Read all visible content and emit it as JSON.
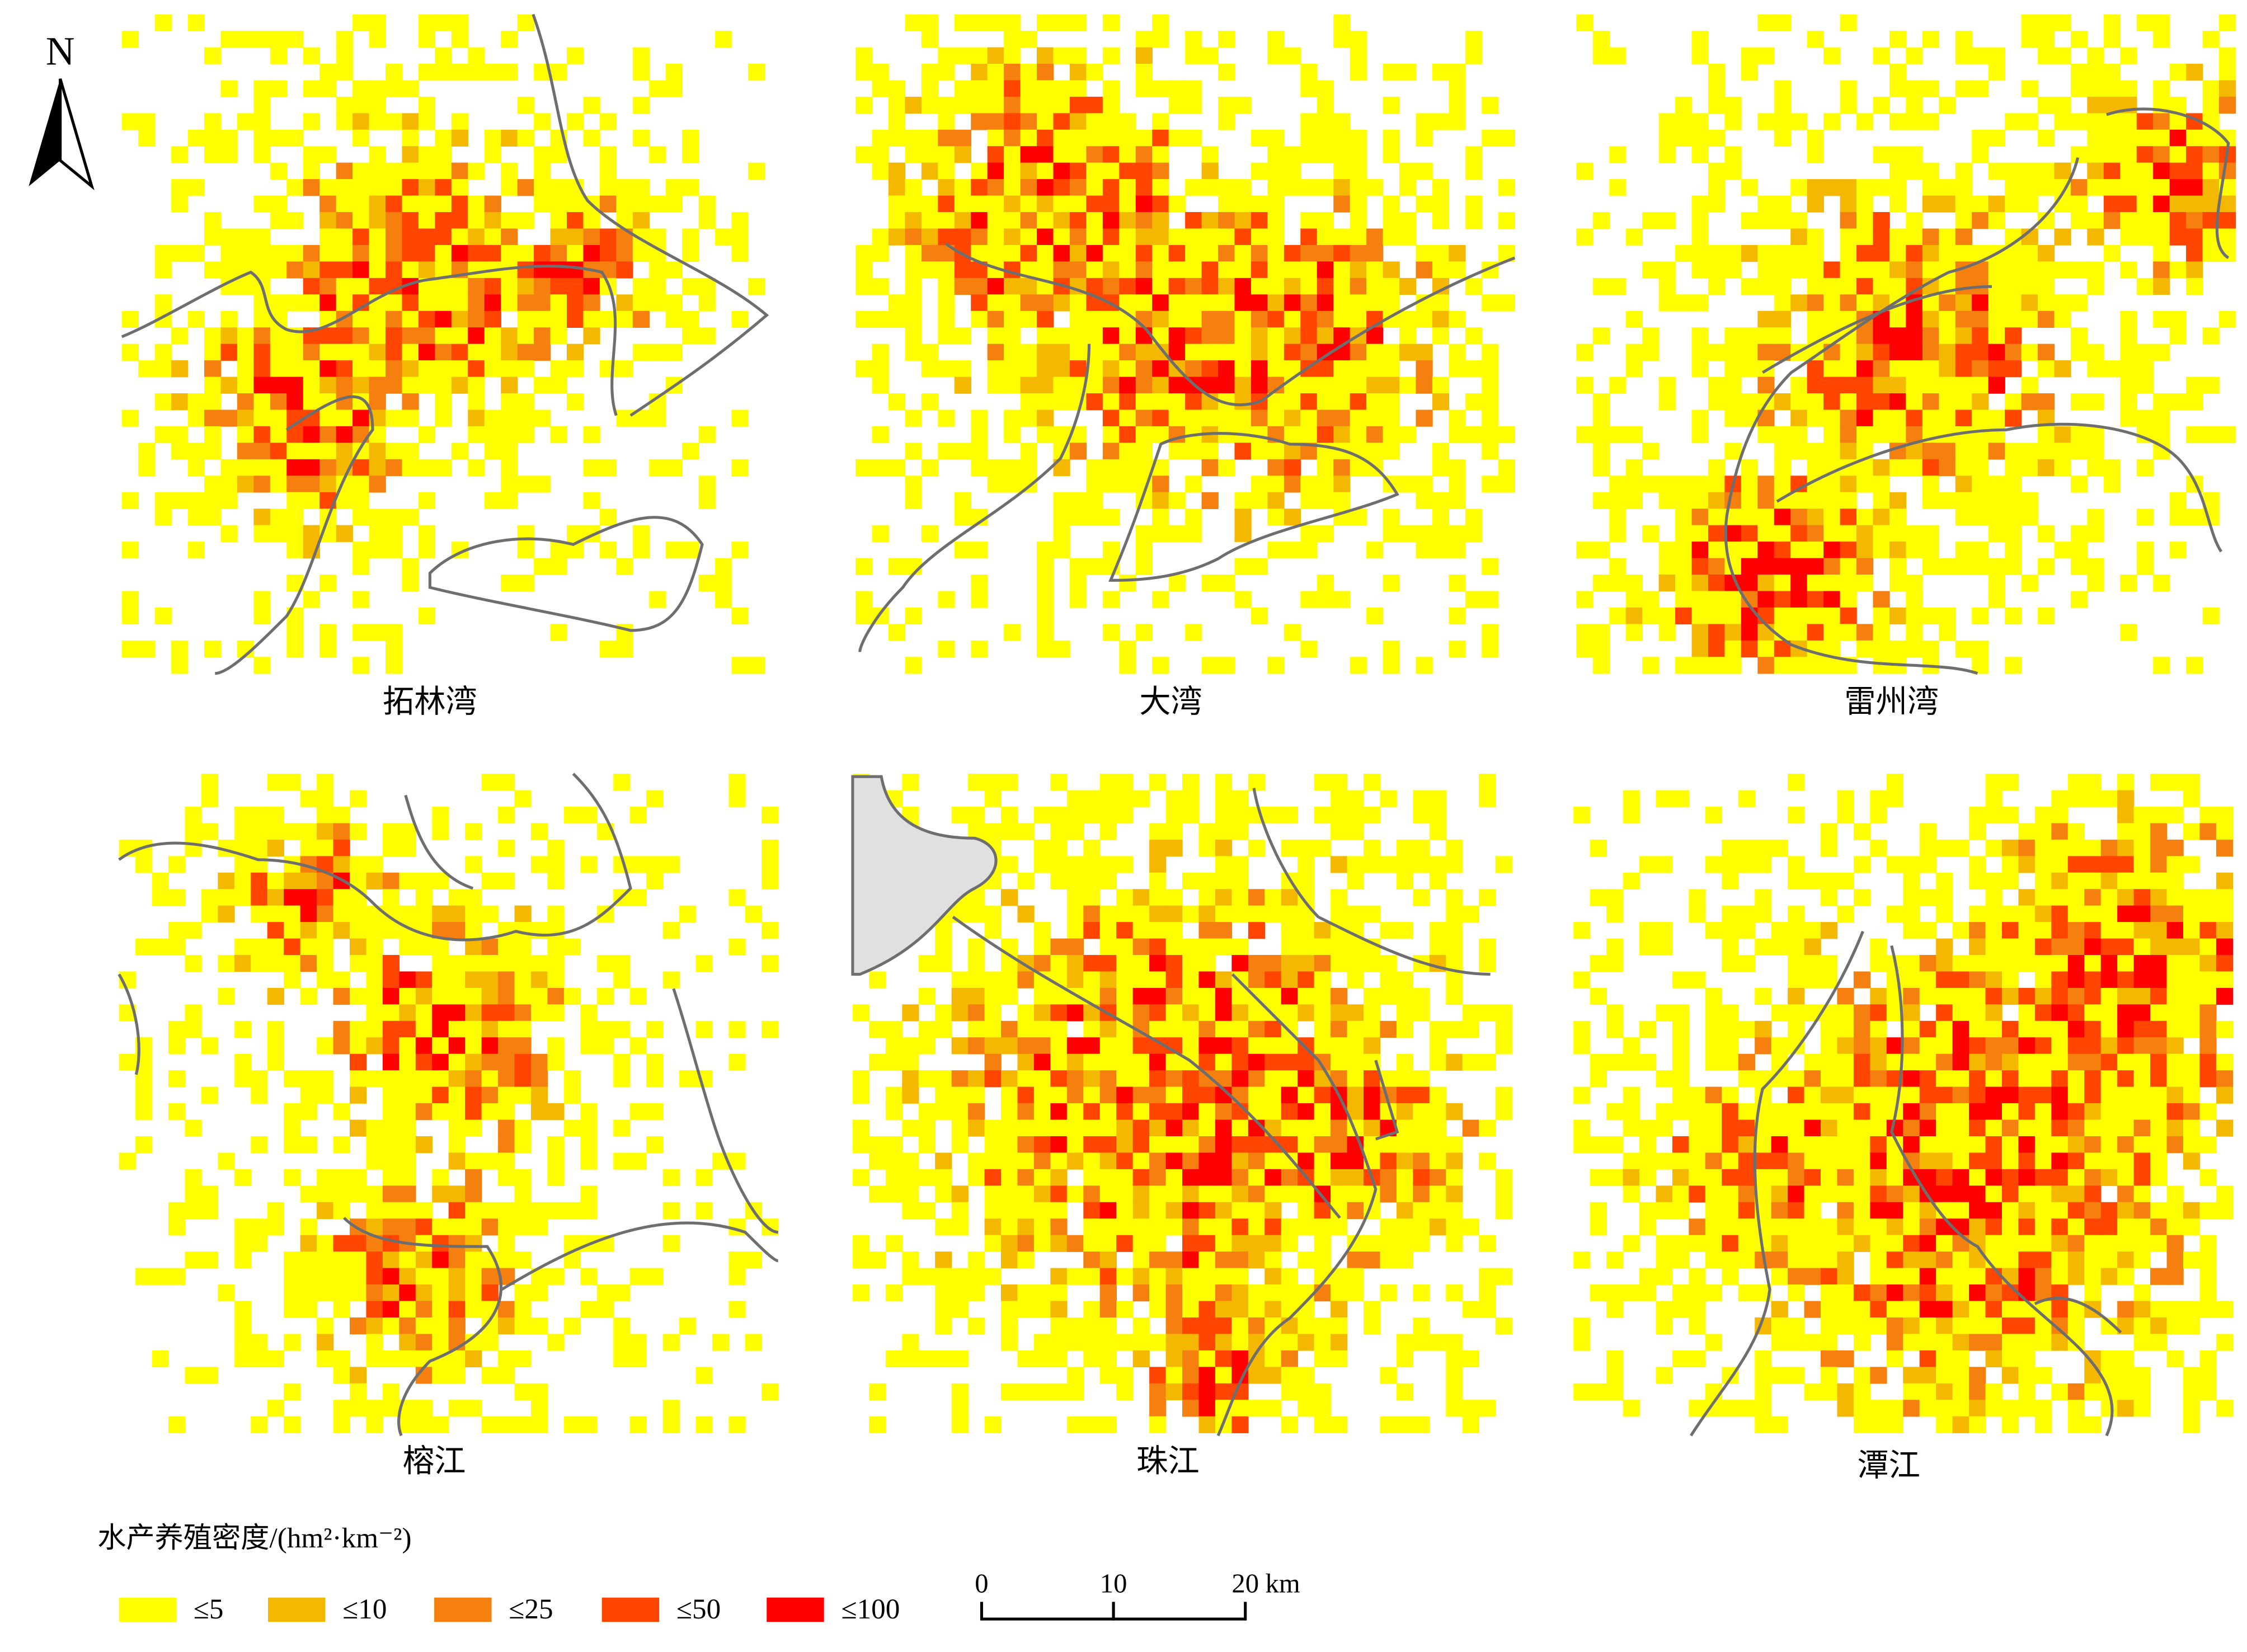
{
  "north_arrow": {
    "label": "N"
  },
  "panels": [
    {
      "title": "拓林湾"
    },
    {
      "title": "大湾"
    },
    {
      "title": "雷州湾"
    },
    {
      "title": "榕江"
    },
    {
      "title": "珠江"
    },
    {
      "title": "潭江"
    }
  ],
  "legend": {
    "title": "水产养殖密度/(hm²·km⁻²)",
    "items": [
      {
        "label": "≤5",
        "color": "#ffff00"
      },
      {
        "label": "≤10",
        "color": "#f5b800"
      },
      {
        "label": "≤25",
        "color": "#f5800f"
      },
      {
        "label": "≤50",
        "color": "#ff4500"
      },
      {
        "label": "≤100",
        "color": "#ff0000"
      }
    ]
  },
  "scale_bar": {
    "ticks": [
      0,
      10,
      20
    ],
    "unit": "km"
  }
}
